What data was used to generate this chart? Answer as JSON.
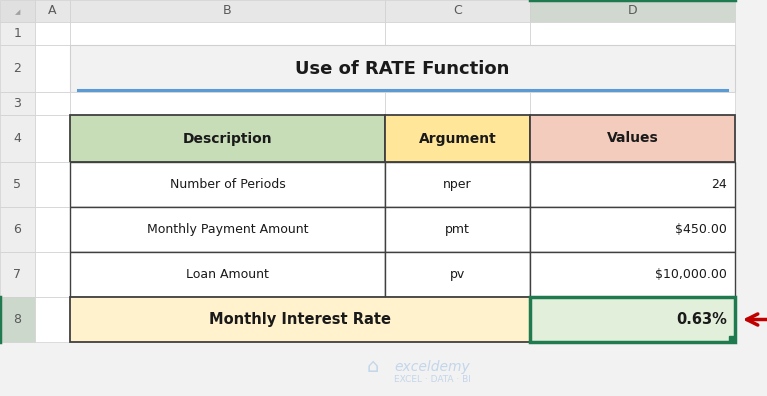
{
  "title": "Use of RATE Function",
  "col_headers": [
    "Description",
    "Argument",
    "Values"
  ],
  "rows": [
    [
      "Number of Periods",
      "nper",
      "24"
    ],
    [
      "Monthly Payment Amount",
      "pmt",
      "$450.00"
    ],
    [
      "Loan Amount",
      "pv",
      "$10,000.00"
    ],
    [
      "Monthly Interest Rate",
      "",
      "0.63%"
    ]
  ],
  "header_bg_colors": [
    "#c6ddb7",
    "#ffe699",
    "#f4ccbe"
  ],
  "last_row_desc_bg": "#fff2cc",
  "last_row_val_bg": "#e2efda",
  "bg_color": "#f2f2f2",
  "cell_bg": "#ffffff",
  "arrow_color": "#c00000",
  "col_header_bg": "#e7e7e7",
  "col_header_bg_selected": "#d0d8d0",
  "row_header_bg": "#eeeeee",
  "row_header_bg_selected": "#ccd8cc",
  "corner_bg": "#e0e0e0",
  "title_cell_bg": "#f2f2f2",
  "empty_cell_bg": "#ffffff",
  "table_border": "#404040",
  "grid_border": "#d0d0d0",
  "header_text_color": "#595959",
  "watermark": "exceldemy",
  "watermark_sub": "EXCEL · DATA · BI",
  "watermark_color": "#b8cfe8",
  "col_green_top_border": "#1f7a4f",
  "col_green_right_border": "#1f7a4f"
}
